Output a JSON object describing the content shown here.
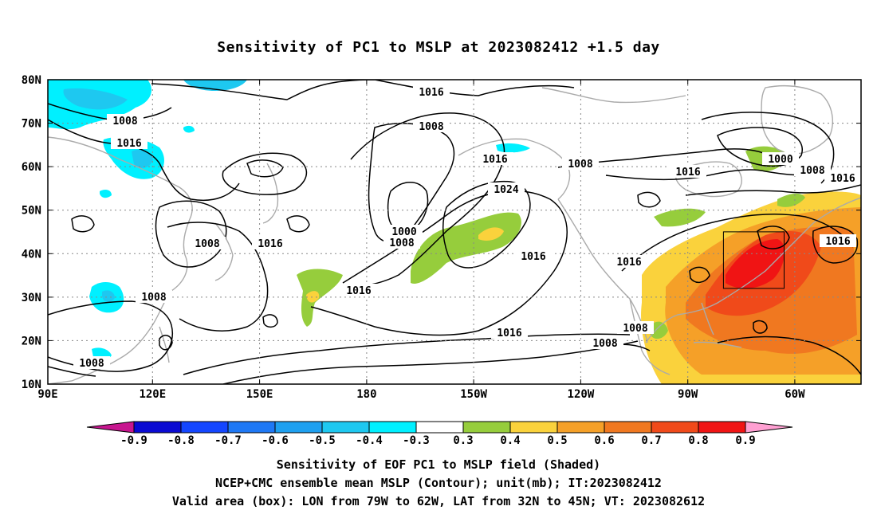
{
  "title": "Sensitivity of PC1 to MSLP at 2023082412 +1.5 day",
  "lat_labels": [
    "80N",
    "70N",
    "60N",
    "50N",
    "40N",
    "30N",
    "20N",
    "10N"
  ],
  "lon_labels": [
    "90E",
    "120E",
    "150E",
    "180",
    "150W",
    "120W",
    "90W",
    "60W"
  ],
  "contour_labels": [
    "1016",
    "1008",
    "1016",
    "1008",
    "1016",
    "1008",
    "1000",
    "1008",
    "1016",
    "1016",
    "1024",
    "1000",
    "1008",
    "1008",
    "1016",
    "1016",
    "1008",
    "1016",
    "1016",
    "1016",
    "1008",
    "1008",
    "1016",
    "1008"
  ],
  "colorbar": {
    "labels": [
      "-0.9",
      "-0.8",
      "-0.7",
      "-0.6",
      "-0.5",
      "-0.4",
      "-0.3",
      "0.3",
      "0.4",
      "0.5",
      "0.6",
      "0.7",
      "0.8",
      "0.9"
    ],
    "colors": [
      "#c7168f",
      "#0a0ad2",
      "#1446ff",
      "#1e78f5",
      "#1ea0f0",
      "#1ec8f0",
      "#00f0ff",
      "#ffffff",
      "#96cd3c",
      "#fad23c",
      "#f5a028",
      "#f07820",
      "#f04a1a",
      "#f01414",
      "#ffa0d2"
    ]
  },
  "captions": {
    "line1": "Sensitivity of EOF PC1 to MSLP field (Shaded)",
    "line2": "NCEP+CMC ensemble mean MSLP (Contour); unit(mb); IT:2023082412",
    "line3": "Valid area (box): LON from 79W to 62W, LAT from 32N to 45N; VT: 2023082612"
  },
  "valid_box": {
    "lon_west": "79W",
    "lon_east": "62W",
    "lat_south": "32N",
    "lat_north": "45N"
  },
  "map": {
    "lon_range": [
      "90E",
      "50W"
    ],
    "lat_range": [
      "10N",
      "80N"
    ],
    "grid": true
  }
}
